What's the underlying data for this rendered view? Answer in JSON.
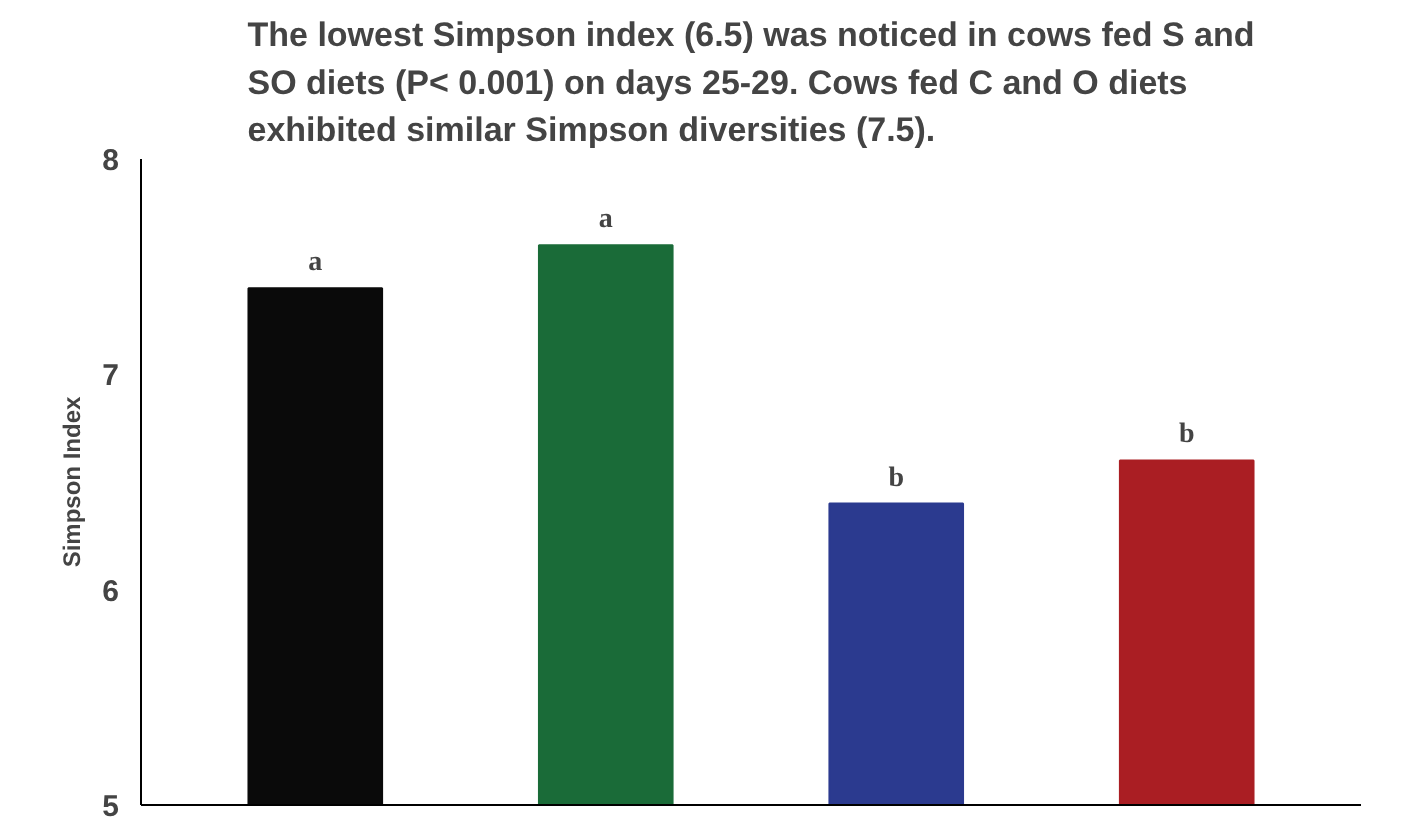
{
  "chart_data": {
    "type": "bar",
    "title": "The lowest Simpson index (6.5) was noticed in cows fed S and\nSO diets (P< 0.001) on days 25-29. Cows fed C and O diets\nexhibited similar Simpson diversities (7.5).",
    "ylabel": "Simpson Index",
    "categories": [
      null,
      null,
      null,
      null
    ],
    "values": [
      7.4,
      7.6,
      6.4,
      6.6
    ],
    "colors": [
      "#0a0a0a",
      "#1a6b38",
      "#2b3a8f",
      "#aa1e23"
    ],
    "value_labels": [
      "a",
      "a",
      "b",
      "b"
    ],
    "ylim": [
      5,
      8
    ],
    "yticks": [
      5,
      6,
      7,
      8
    ],
    "grid": false
  }
}
